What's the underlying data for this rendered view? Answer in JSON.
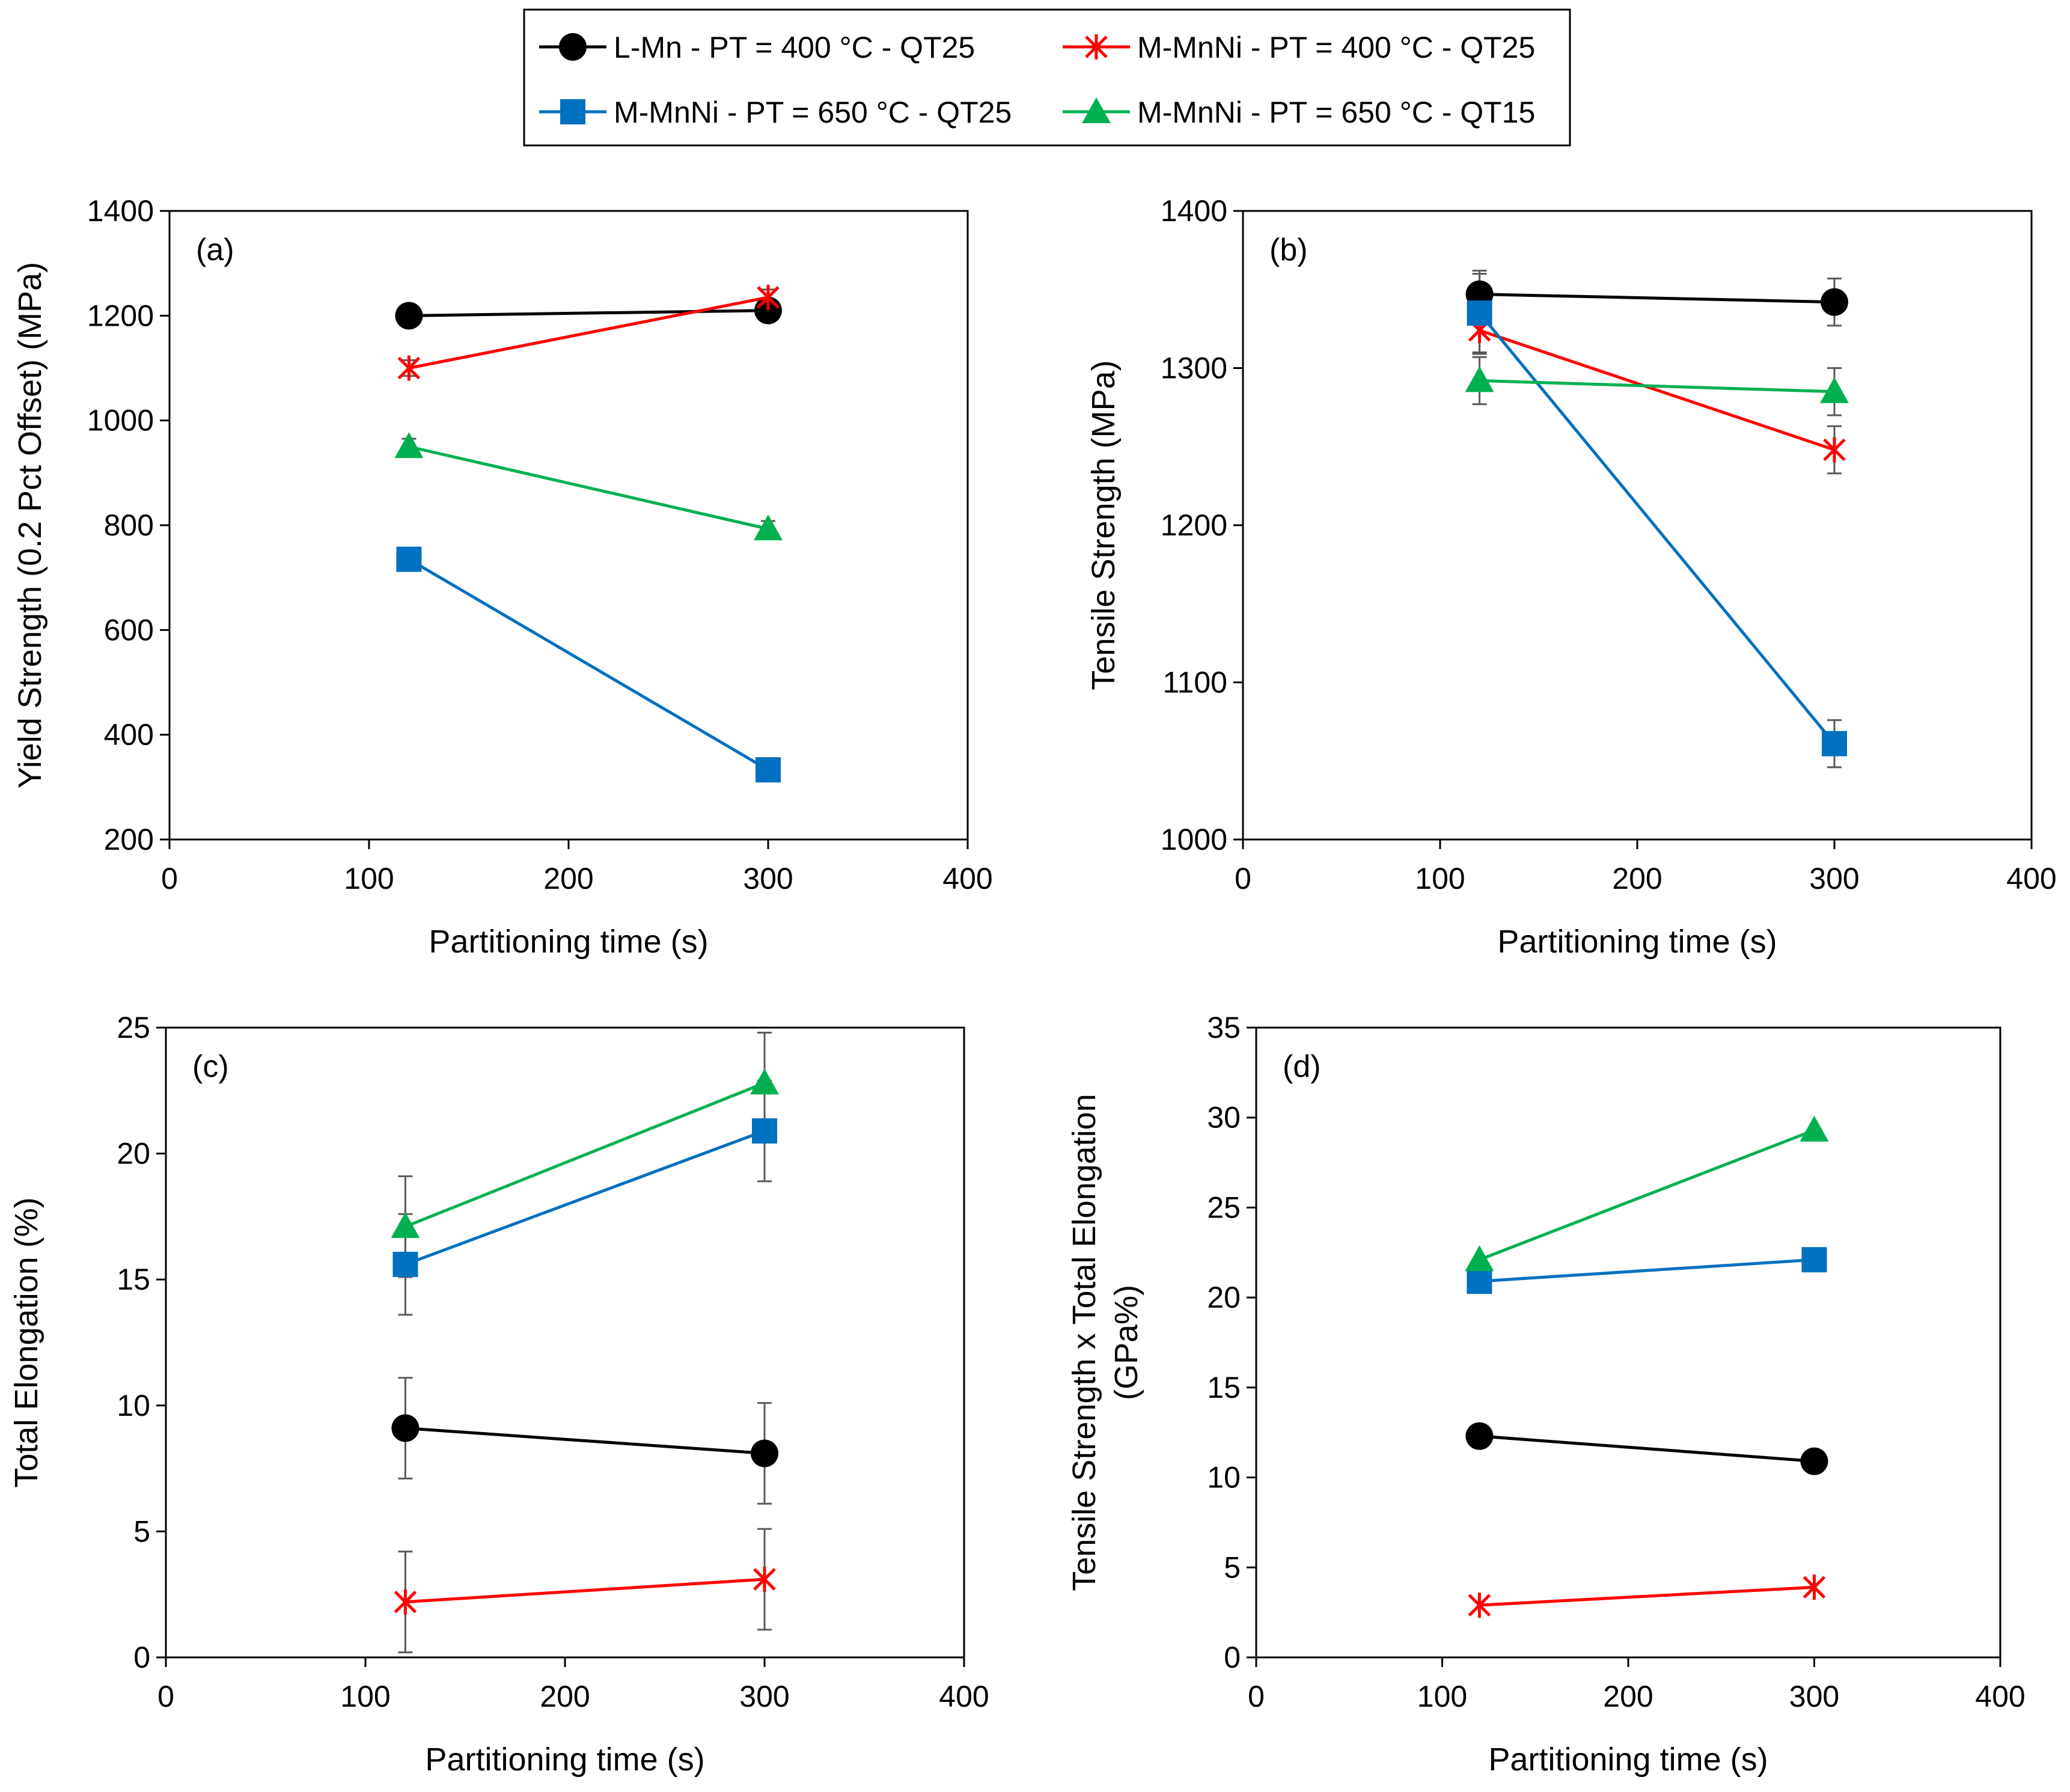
{
  "legend": [
    {
      "key": "LMn400QT25",
      "label": "L-Mn - PT = 400 °C - QT25",
      "color": "#000000",
      "marker": "circle"
    },
    {
      "key": "MMnNi400QT25",
      "label": "M-MnNi - PT = 400 °C - QT25",
      "color": "#ff0000",
      "marker": "star"
    },
    {
      "key": "MMnNi650QT25",
      "label": "M-MnNi - PT = 650 °C - QT25",
      "color": "#0070c0",
      "marker": "square"
    },
    {
      "key": "MMnNi650QT15",
      "label": "M-MnNi - PT = 650 °C - QT15",
      "color": "#00b050",
      "marker": "triangle"
    }
  ],
  "chart_data": [
    {
      "id": "a",
      "type": "line",
      "panel_label": "(a)",
      "xlabel": "Partitioning time (s)",
      "ylabel": [
        "Yield Strength (0.2 Pct Offset) (MPa)"
      ],
      "xlim": [
        0,
        400
      ],
      "ylim": [
        200,
        1400
      ],
      "xticks": [
        0,
        100,
        200,
        300,
        400
      ],
      "yticks": [
        200,
        400,
        600,
        800,
        1000,
        1200,
        1400
      ],
      "x": [
        120,
        300
      ],
      "series": [
        {
          "name": "L-Mn - PT = 400 °C - QT25",
          "key": "LMn400QT25",
          "values": [
            1200,
            1210
          ],
          "err": [
            0,
            0
          ]
        },
        {
          "name": "M-MnNi - PT = 400 °C - QT25",
          "key": "MMnNi400QT25",
          "values": [
            1100,
            1235
          ],
          "err": [
            15,
            15
          ]
        },
        {
          "name": "M-MnNi - PT = 650 °C - QT25",
          "key": "MMnNi650QT25",
          "values": [
            735,
            333
          ],
          "err": [
            0,
            0
          ]
        },
        {
          "name": "M-MnNi - PT = 650 °C - QT15",
          "key": "MMnNi650QT15",
          "values": [
            950,
            793
          ],
          "err": [
            15,
            15
          ]
        }
      ]
    },
    {
      "id": "b",
      "type": "line",
      "panel_label": "(b)",
      "xlabel": "Partitioning time (s)",
      "ylabel": [
        "Tensile Strength (MPa)"
      ],
      "xlim": [
        0,
        400
      ],
      "ylim": [
        1000,
        1400
      ],
      "xticks": [
        0,
        100,
        200,
        300,
        400
      ],
      "yticks": [
        1000,
        1100,
        1200,
        1300,
        1400
      ],
      "x": [
        120,
        300
      ],
      "series": [
        {
          "name": "L-Mn - PT = 400 °C - QT25",
          "key": "LMn400QT25",
          "values": [
            1347,
            1342
          ],
          "err": [
            15,
            15
          ]
        },
        {
          "name": "M-MnNi - PT = 400 °C - QT25",
          "key": "MMnNi400QT25",
          "values": [
            1324,
            1248
          ],
          "err": [
            15,
            15
          ]
        },
        {
          "name": "M-MnNi - PT = 650 °C - QT25",
          "key": "MMnNi650QT25",
          "values": [
            1335,
            1061
          ],
          "err": [
            25,
            15
          ]
        },
        {
          "name": "M-MnNi - PT = 650 °C - QT15",
          "key": "MMnNi650QT15",
          "values": [
            1292,
            1285
          ],
          "err": [
            15,
            15
          ]
        }
      ]
    },
    {
      "id": "c",
      "type": "line",
      "panel_label": "(c)",
      "xlabel": "Partitioning time (s)",
      "ylabel": [
        "Total Elongation (%)"
      ],
      "xlim": [
        0,
        400
      ],
      "ylim": [
        0,
        25
      ],
      "xticks": [
        0,
        100,
        200,
        300,
        400
      ],
      "yticks": [
        0,
        5,
        10,
        15,
        20,
        25
      ],
      "x": [
        120,
        300
      ],
      "series": [
        {
          "name": "L-Mn - PT = 400 °C - QT25",
          "key": "LMn400QT25",
          "values": [
            9.1,
            8.1
          ],
          "err": [
            2.0,
            2.0
          ]
        },
        {
          "name": "M-MnNi - PT = 400 °C - QT25",
          "key": "MMnNi400QT25",
          "values": [
            2.2,
            3.1
          ],
          "err": [
            2.0,
            2.0
          ]
        },
        {
          "name": "M-MnNi - PT = 650 °C - QT25",
          "key": "MMnNi650QT25",
          "values": [
            15.6,
            20.9
          ],
          "err": [
            2.0,
            2.0
          ]
        },
        {
          "name": "M-MnNi - PT = 650 °C - QT15",
          "key": "MMnNi650QT15",
          "values": [
            17.1,
            22.8
          ],
          "err": [
            2.0,
            2.0
          ]
        }
      ]
    },
    {
      "id": "d",
      "type": "line",
      "panel_label": "(d)",
      "xlabel": "Partitioning time (s)",
      "ylabel": [
        "Tensile Strength x Total Elongation",
        "(GPa%)"
      ],
      "xlim": [
        0,
        400
      ],
      "ylim": [
        0,
        35
      ],
      "xticks": [
        0,
        100,
        200,
        300,
        400
      ],
      "yticks": [
        0,
        5,
        10,
        15,
        20,
        25,
        30,
        35
      ],
      "x": [
        120,
        300
      ],
      "series": [
        {
          "name": "L-Mn - PT = 400 °C - QT25",
          "key": "LMn400QT25",
          "values": [
            12.3,
            10.9
          ],
          "err": [
            0,
            0
          ]
        },
        {
          "name": "M-MnNi - PT = 400 °C - QT25",
          "key": "MMnNi400QT25",
          "values": [
            2.9,
            3.9
          ],
          "err": [
            0,
            0
          ]
        },
        {
          "name": "M-MnNi - PT = 650 °C - QT25",
          "key": "MMnNi650QT25",
          "values": [
            20.9,
            22.1
          ],
          "err": [
            0,
            0
          ]
        },
        {
          "name": "M-MnNi - PT = 650 °C - QT15",
          "key": "MMnNi650QT15",
          "values": [
            22.1,
            29.3
          ],
          "err": [
            0,
            0
          ]
        }
      ]
    }
  ]
}
